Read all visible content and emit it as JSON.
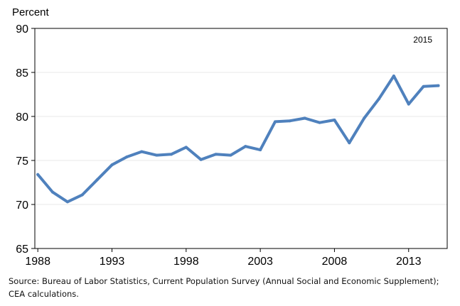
{
  "chart_data": {
    "type": "line",
    "title": "",
    "ylabel": "Percent",
    "xlabel": "",
    "annotation": "2015",
    "ylim": [
      65,
      90
    ],
    "yticks": [
      "65",
      "70",
      "75",
      "80",
      "85",
      "90"
    ],
    "xlim": [
      1987.8,
      2015.6
    ],
    "xticks": [
      "1988",
      "1993",
      "1998",
      "2003",
      "2008",
      "2013"
    ],
    "grid": true,
    "legend": "none",
    "series_color": "#4f81bd",
    "series": [
      {
        "name": "",
        "x": [
          1988,
          1989,
          1990,
          1991,
          1992,
          1993,
          1994,
          1995,
          1996,
          1997,
          1998,
          1999,
          2000,
          2001,
          2002,
          2003,
          2004,
          2005,
          2006,
          2007,
          2008,
          2009,
          2010,
          2011,
          2012,
          2013,
          2014,
          2015
        ],
        "values": [
          73.4,
          71.4,
          70.3,
          71.1,
          72.8,
          74.5,
          75.4,
          76.0,
          75.6,
          75.7,
          76.5,
          75.1,
          75.7,
          75.6,
          76.6,
          76.2,
          79.4,
          79.5,
          79.8,
          79.3,
          79.6,
          77.0,
          79.8,
          82.0,
          84.6,
          81.4,
          83.4,
          83.5
        ]
      }
    ]
  },
  "source_note": "Source: Bureau of Labor Statistics, Current Population Survey (Annual Social and Economic Supplement); CEA calculations."
}
